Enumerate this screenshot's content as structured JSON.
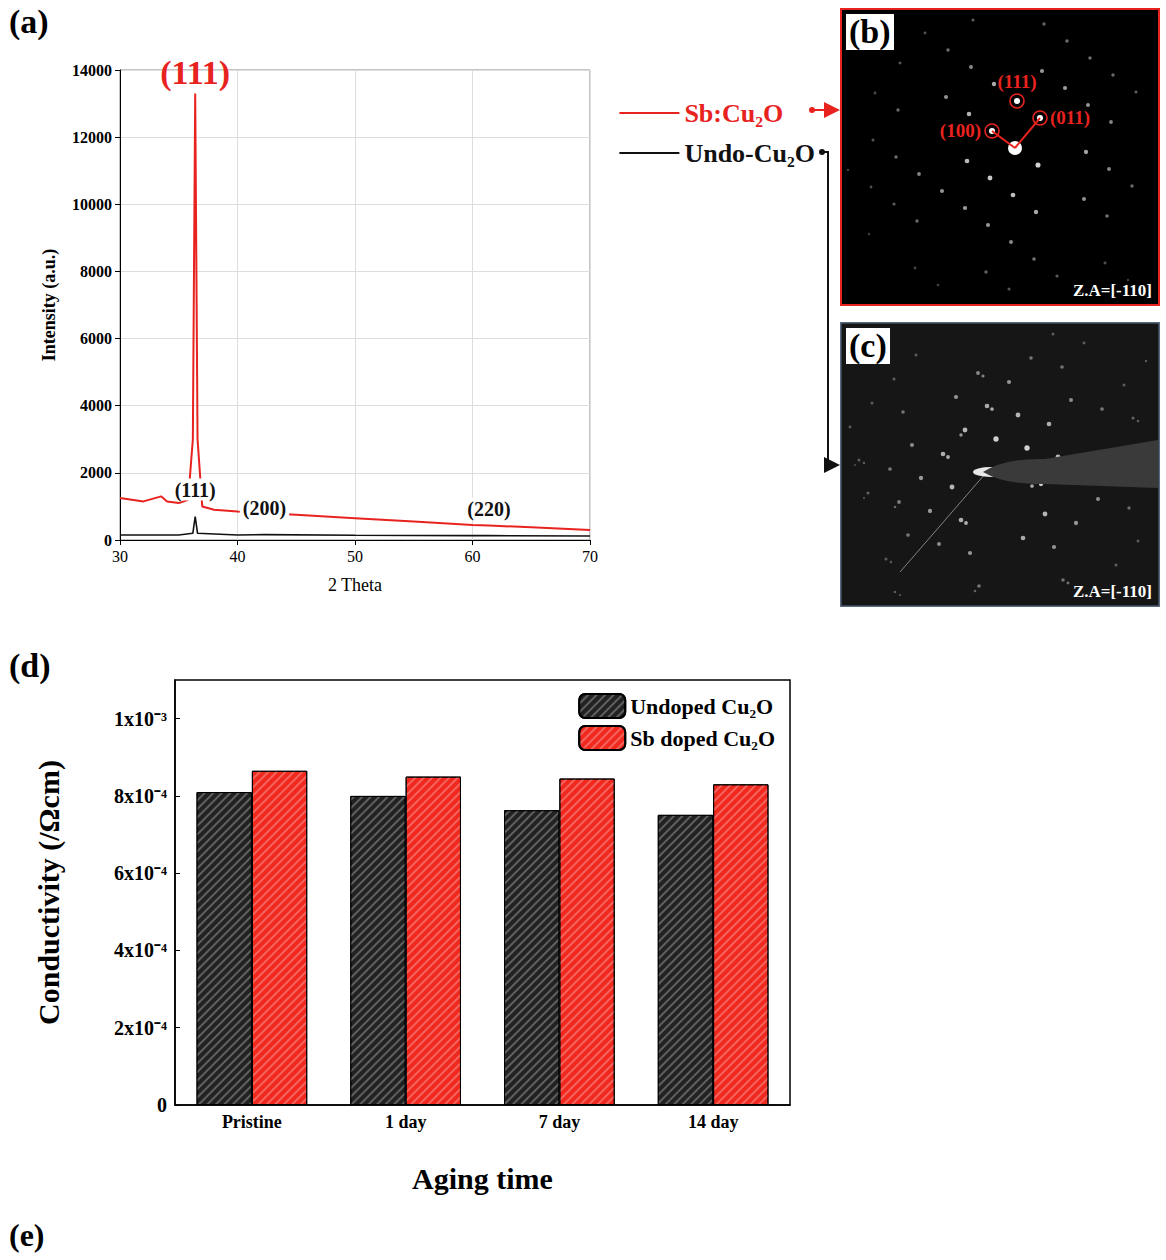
{
  "panel_labels": [
    "(a)",
    "(b)",
    "(c)",
    "(d)",
    "(e)"
  ],
  "chart_data": [
    {
      "type": "line",
      "x_label": "2 Theta",
      "y_label": "Intensity (a.u.)",
      "xlim": [
        30,
        70
      ],
      "xticks": [
        30,
        40,
        50,
        60,
        70
      ],
      "ylim": [
        0,
        14000
      ],
      "yticks": [
        0,
        2000,
        4000,
        6000,
        8000,
        10000,
        12000,
        14000
      ],
      "grid": true,
      "legend": "right",
      "series": [
        {
          "name": "Sb:Cu₂O",
          "color": "#e8231f",
          "x": [
            30,
            32,
            33.5,
            34,
            35,
            35.8,
            36.2,
            36.4,
            36.6,
            37,
            38,
            40,
            42.3,
            45,
            50,
            55,
            60,
            61.4,
            65,
            70
          ],
          "values": [
            1250,
            1150,
            1300,
            1150,
            1100,
            1200,
            3000,
            13300,
            3000,
            1000,
            900,
            850,
            800,
            750,
            650,
            550,
            450,
            430,
            380,
            300
          ]
        },
        {
          "name": "Undo-Cu₂O",
          "color": "#111111",
          "x": [
            30,
            35,
            36.2,
            36.4,
            36.6,
            40,
            42.3,
            50,
            60,
            61.4,
            70
          ],
          "values": [
            150,
            150,
            200,
            700,
            200,
            150,
            160,
            140,
            130,
            130,
            120
          ]
        }
      ],
      "annotations": [
        {
          "text": "(111)",
          "x": 36.4,
          "series": "Sb:Cu₂O"
        },
        {
          "text": "(111)",
          "x": 36.4,
          "series": "Undo-Cu₂O"
        },
        {
          "text": "(200)",
          "x": 42.3,
          "series": "Undo-Cu₂O"
        },
        {
          "text": "(220)",
          "x": 61.4,
          "series": "Undo-Cu₂O"
        }
      ]
    },
    {
      "type": "bar",
      "x_label": "Aging time",
      "y_label": "Conductivity (/Ωcm)",
      "categories": [
        "Pristine",
        "1 day",
        "7 day",
        "14 day"
      ],
      "series": [
        {
          "name": "Undoped Cu₂O",
          "color": "#222222",
          "values": [
            0.00081,
            0.0008,
            0.000763,
            0.000751
          ]
        },
        {
          "name": "Sb doped Cu₂O",
          "color": "#f0281e",
          "values": [
            0.000865,
            0.00085,
            0.000845,
            0.00083
          ]
        }
      ],
      "ylim": [
        0,
        0.0011
      ],
      "yticks": [
        0,
        {
          "value": 0.0002,
          "label": "2x10⁻⁴"
        },
        {
          "value": 0.0004,
          "label": "4x10⁻⁴"
        },
        {
          "value": 0.0006,
          "label": "6x10⁻⁴"
        },
        {
          "value": 0.0008,
          "label": "8x10⁻⁴"
        },
        {
          "value": 0.001,
          "label": "1x10⁻³"
        }
      ],
      "grid": false,
      "legend": "top-right"
    }
  ],
  "diffraction": [
    {
      "labels": [
        "(111)",
        "(100)",
        "(011)"
      ],
      "zone_axis": "Z.A=[-110]"
    },
    {
      "zone_axis": "Z.A=[-110]"
    }
  ]
}
